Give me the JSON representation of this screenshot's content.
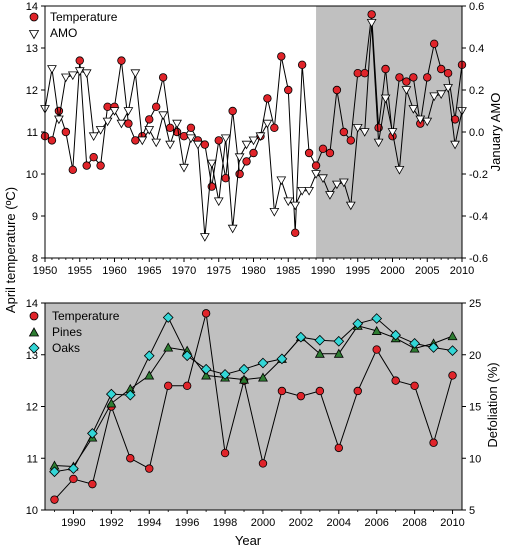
{
  "chart_data": [
    {
      "type": "line",
      "xlim": [
        1950,
        2010
      ],
      "ylim_left": [
        8,
        14
      ],
      "ylim_right": [
        -0.6,
        0.6
      ],
      "xticks": [
        "1950",
        "1955",
        "1960",
        "1965",
        "1970",
        "1975",
        "1980",
        "1985",
        "1990",
        "1995",
        "2000",
        "2005",
        "2010"
      ],
      "yticks_left": [
        "8",
        "9",
        "10",
        "11",
        "12",
        "13",
        "14"
      ],
      "yticks_right": [
        "-0.6",
        "-0.4",
        "-0.2",
        "0.0",
        "0.2",
        "0.4",
        "0.6"
      ],
      "ylabel_right": "January AMO",
      "shaded_from": 1989,
      "shade_color": "#c0c0c0",
      "legend": [
        "Temperature",
        "AMO"
      ],
      "legend_position": "top-left",
      "series": [
        {
          "name": "Temperature",
          "axis": "left",
          "marker": "circle",
          "color": "#e0242a",
          "x": [
            1950,
            1951,
            1952,
            1953,
            1954,
            1955,
            1956,
            1957,
            1958,
            1959,
            1960,
            1961,
            1962,
            1963,
            1964,
            1965,
            1966,
            1967,
            1968,
            1969,
            1970,
            1971,
            1972,
            1973,
            1974,
            1975,
            1976,
            1977,
            1978,
            1979,
            1980,
            1981,
            1982,
            1983,
            1984,
            1985,
            1986,
            1987,
            1988,
            1989,
            1990,
            1991,
            1992,
            1993,
            1994,
            1995,
            1996,
            1997,
            1998,
            1999,
            2000,
            2001,
            2002,
            2003,
            2004,
            2005,
            2006,
            2007,
            2008,
            2009,
            2010
          ],
          "y": [
            10.9,
            10.8,
            11.5,
            11.0,
            10.1,
            12.7,
            10.2,
            10.4,
            10.2,
            11.6,
            11.6,
            12.7,
            11.2,
            10.8,
            10.9,
            11.3,
            11.6,
            12.3,
            11.1,
            11.0,
            10.9,
            11.1,
            10.8,
            10.7,
            9.7,
            10.8,
            9.9,
            11.5,
            10.0,
            10.3,
            10.5,
            10.9,
            11.8,
            11.1,
            12.8,
            12.0,
            8.6,
            12.6,
            10.5,
            10.2,
            10.6,
            10.5,
            12.0,
            11.0,
            10.8,
            12.4,
            12.4,
            13.8,
            11.1,
            12.5,
            10.9,
            12.3,
            12.2,
            12.3,
            11.2,
            12.3,
            13.1,
            12.5,
            12.4,
            11.3,
            12.6
          ]
        },
        {
          "name": "AMO",
          "axis": "right",
          "marker": "triangle-down",
          "color": "#ffffff",
          "x": [
            1950,
            1951,
            1952,
            1953,
            1954,
            1955,
            1956,
            1957,
            1958,
            1959,
            1960,
            1961,
            1962,
            1963,
            1964,
            1965,
            1966,
            1967,
            1968,
            1969,
            1970,
            1971,
            1972,
            1973,
            1974,
            1975,
            1976,
            1977,
            1978,
            1979,
            1980,
            1981,
            1982,
            1983,
            1984,
            1985,
            1986,
            1987,
            1988,
            1989,
            1990,
            1991,
            1992,
            1993,
            1994,
            1995,
            1996,
            1997,
            1998,
            1999,
            2000,
            2001,
            2002,
            2003,
            2004,
            2005,
            2006,
            2007,
            2008,
            2009,
            2010
          ],
          "y": [
            0.11,
            0.3,
            0.06,
            0.26,
            0.27,
            0.29,
            0.28,
            -0.02,
            0.01,
            0.05,
            0.1,
            0.04,
            0.1,
            0.28,
            -0.04,
            0.01,
            -0.05,
            0.08,
            -0.06,
            0.04,
            -0.17,
            -0.03,
            -0.06,
            -0.5,
            -0.15,
            -0.33,
            -0.03,
            -0.46,
            -0.12,
            -0.06,
            -0.04,
            -0.02,
            0.04,
            -0.38,
            -0.23,
            -0.33,
            -0.35,
            -0.28,
            -0.28,
            -0.2,
            -0.22,
            -0.3,
            -0.25,
            -0.24,
            -0.35,
            0.02,
            0.0,
            0.52,
            -0.05,
            0.16,
            0.0,
            -0.18,
            0.2,
            0.11,
            0.06,
            0.05,
            0.17,
            0.18,
            0.21,
            -0.06,
            0.1
          ]
        }
      ]
    },
    {
      "type": "line",
      "xlim": [
        1988.5,
        2010.5
      ],
      "ylim_left": [
        10,
        14
      ],
      "ylim_right": [
        5,
        25
      ],
      "xticks": [
        "1990",
        "1992",
        "1994",
        "1996",
        "1998",
        "2000",
        "2002",
        "2004",
        "2006",
        "2008",
        "2010"
      ],
      "yticks_left": [
        "10",
        "11",
        "12",
        "13",
        "14"
      ],
      "yticks_right": [
        "5",
        "10",
        "15",
        "20",
        "25"
      ],
      "xlabel": "Year",
      "ylabel_right": "Defoliation (%)",
      "background": "#c0c0c0",
      "legend": [
        "Temperature",
        "Pines",
        "Oaks"
      ],
      "legend_position": "top-left",
      "series": [
        {
          "name": "Temperature",
          "axis": "left",
          "marker": "circle",
          "color": "#e0242a",
          "x": [
            1989,
            1990,
            1991,
            1992,
            1993,
            1994,
            1995,
            1996,
            1997,
            1998,
            1999,
            2000,
            2001,
            2002,
            2003,
            2004,
            2005,
            2006,
            2007,
            2008,
            2009,
            2010
          ],
          "y": [
            10.2,
            10.6,
            10.5,
            12.0,
            11.0,
            10.8,
            12.4,
            12.4,
            13.8,
            11.1,
            12.5,
            10.9,
            12.3,
            12.2,
            12.3,
            11.2,
            12.3,
            13.1,
            12.5,
            12.4,
            11.3,
            12.6
          ]
        },
        {
          "name": "Pines",
          "axis": "right",
          "marker": "triangle",
          "color": "#2e7d32",
          "x": [
            1989,
            1990,
            1991,
            1992,
            1993,
            1994,
            1995,
            1996,
            1997,
            1998,
            1999,
            2000,
            2001,
            2002,
            2003,
            2004,
            2005,
            2006,
            2007,
            2008,
            2009,
            2010
          ],
          "y": [
            9.3,
            9.2,
            12.0,
            15.3,
            16.7,
            18.0,
            20.7,
            20.4,
            18.0,
            17.8,
            17.6,
            17.8,
            19.6,
            21.7,
            20.1,
            20.1,
            22.8,
            22.3,
            21.6,
            20.6,
            21.1,
            21.8
          ]
        },
        {
          "name": "Oaks",
          "axis": "right",
          "marker": "diamond",
          "color": "#33d6d6",
          "x": [
            1989,
            1990,
            1991,
            1992,
            1993,
            1994,
            1995,
            1996,
            1997,
            1998,
            1999,
            2000,
            2001,
            2002,
            2003,
            2004,
            2005,
            2006,
            2007,
            2008,
            2009,
            2010
          ],
          "y": [
            8.7,
            9.0,
            12.4,
            16.2,
            16.1,
            19.9,
            23.6,
            19.9,
            18.6,
            18.1,
            18.6,
            19.2,
            19.6,
            21.7,
            21.4,
            21.3,
            23.0,
            23.5,
            21.9,
            21.1,
            20.7,
            20.4
          ]
        }
      ]
    }
  ],
  "shared_ylabel_left": "April temperature (ºC)"
}
